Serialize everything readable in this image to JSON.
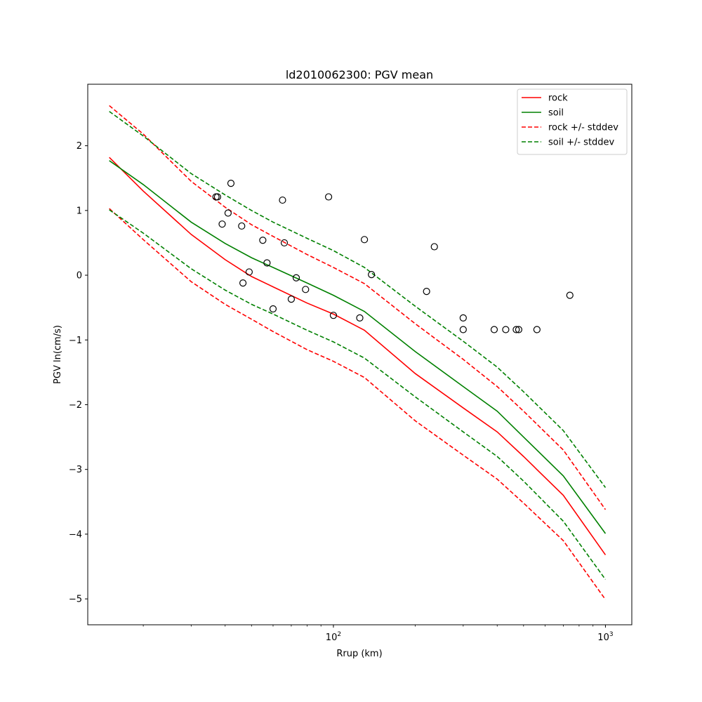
{
  "chart_data": {
    "type": "line",
    "title": "ld2010062300: PGV mean",
    "xlabel": "Rrup (km)",
    "ylabel": "PGV ln(cm/s)",
    "xscale": "log",
    "xlim": [
      12.5,
      1250
    ],
    "ylim": [
      -5.4,
      2.95
    ],
    "xticks": [
      {
        "value": 100,
        "base": "10",
        "exp": "2"
      },
      {
        "value": 1000,
        "base": "10",
        "exp": "3"
      }
    ],
    "yticks": [
      {
        "value": 2,
        "label": "2"
      },
      {
        "value": 1,
        "label": "1"
      },
      {
        "value": 0,
        "label": "0"
      },
      {
        "value": -1,
        "label": "−1"
      },
      {
        "value": -2,
        "label": "−2"
      },
      {
        "value": -3,
        "label": "−3"
      },
      {
        "value": -4,
        "label": "−4"
      },
      {
        "value": -5,
        "label": "−5"
      }
    ],
    "grid": false,
    "legend_position": "top-right",
    "series": [
      {
        "name": "rock",
        "color": "#ff0000",
        "dash": "solid",
        "x": [
          15,
          20,
          30,
          40,
          50,
          60,
          80,
          100,
          130,
          200,
          300,
          400,
          500,
          700,
          1000
        ],
        "y": [
          1.82,
          1.3,
          0.63,
          0.24,
          -0.02,
          -0.18,
          -0.43,
          -0.6,
          -0.85,
          -1.52,
          -2.05,
          -2.42,
          -2.8,
          -3.4,
          -4.32
        ]
      },
      {
        "name": "soil",
        "color": "#008000",
        "dash": "solid",
        "x": [
          15,
          20,
          30,
          40,
          50,
          60,
          80,
          100,
          130,
          200,
          300,
          400,
          500,
          700,
          1000
        ],
        "y": [
          1.77,
          1.4,
          0.82,
          0.49,
          0.27,
          0.12,
          -0.12,
          -0.31,
          -0.56,
          -1.18,
          -1.72,
          -2.1,
          -2.5,
          -3.1,
          -3.99
        ]
      },
      {
        "name": "rock +/- stddev",
        "color": "#ff0000",
        "dash": "dashed",
        "x": [
          15,
          20,
          30,
          40,
          50,
          60,
          80,
          100,
          130,
          200,
          300,
          400,
          500,
          700,
          1000
        ],
        "y": [
          2.62,
          2.18,
          1.45,
          1.05,
          0.78,
          0.6,
          0.32,
          0.12,
          -0.13,
          -0.75,
          -1.3,
          -1.72,
          -2.1,
          -2.7,
          -3.62
        ]
      },
      {
        "name": "",
        "color": "#ff0000",
        "dash": "dashed",
        "x": [
          15,
          20,
          30,
          40,
          50,
          60,
          80,
          100,
          130,
          200,
          300,
          400,
          500,
          700,
          1000
        ],
        "y": [
          1.03,
          0.55,
          -0.1,
          -0.45,
          -0.68,
          -0.87,
          -1.15,
          -1.33,
          -1.58,
          -2.25,
          -2.78,
          -3.15,
          -3.52,
          -4.1,
          -5.01
        ]
      },
      {
        "name": "soil +/- stddev",
        "color": "#008000",
        "dash": "dashed",
        "x": [
          15,
          20,
          30,
          40,
          50,
          60,
          80,
          100,
          130,
          200,
          300,
          400,
          500,
          700,
          1000
        ],
        "y": [
          2.53,
          2.15,
          1.57,
          1.24,
          1.0,
          0.82,
          0.57,
          0.38,
          0.12,
          -0.48,
          -1.02,
          -1.42,
          -1.8,
          -2.4,
          -3.28
        ]
      },
      {
        "name": "",
        "color": "#008000",
        "dash": "dashed",
        "x": [
          15,
          20,
          30,
          40,
          50,
          60,
          80,
          100,
          130,
          200,
          300,
          400,
          500,
          700,
          1000
        ],
        "y": [
          1.01,
          0.65,
          0.1,
          -0.23,
          -0.45,
          -0.6,
          -0.85,
          -1.03,
          -1.28,
          -1.88,
          -2.42,
          -2.8,
          -3.18,
          -3.8,
          -4.7
        ]
      }
    ],
    "observations": {
      "marker": "open-circle",
      "x": [
        37,
        37.5,
        39,
        41,
        42,
        46,
        46.5,
        49,
        55,
        57,
        60,
        65,
        66,
        70,
        73,
        79,
        96,
        100,
        125,
        130,
        138,
        220,
        235,
        300,
        300,
        390,
        430,
        470,
        480,
        560,
        740
      ],
      "y": [
        1.21,
        1.21,
        0.79,
        0.96,
        1.42,
        0.76,
        -0.12,
        0.05,
        0.54,
        0.19,
        -0.52,
        1.16,
        0.5,
        -0.37,
        -0.04,
        -0.22,
        1.21,
        -0.62,
        -0.66,
        0.55,
        0.01,
        -0.25,
        0.44,
        -0.66,
        -0.84,
        -0.84,
        -0.84,
        -0.84,
        -0.84,
        -0.84,
        -0.31
      ]
    }
  }
}
